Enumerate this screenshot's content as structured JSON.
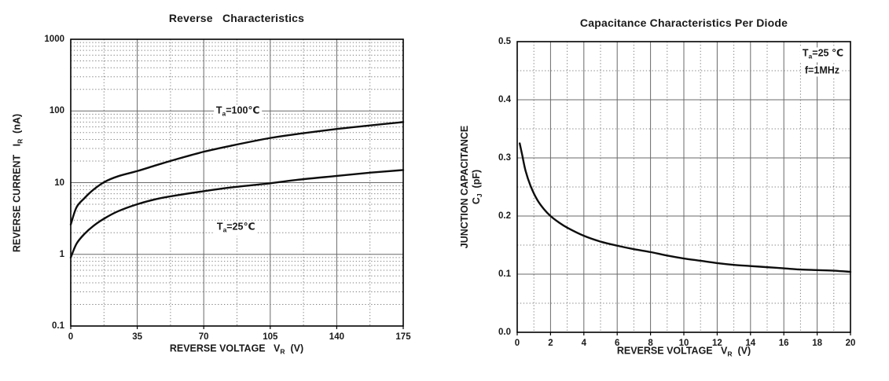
{
  "page": {
    "background": "#ffffff"
  },
  "colors": {
    "text": "#1a1a1a",
    "curve": "#0d0d0d",
    "border": "#000000",
    "grid_major": "#696969",
    "grid_minor": "#7f7f7f"
  },
  "chart_data": [
    {
      "type": "line",
      "title": "Reverse   Characteristics",
      "x_axis": {
        "scale": "linear",
        "min": 0,
        "max": 175,
        "major_step": 35,
        "minor_step": 17.5,
        "tick_values": [
          0,
          35,
          70,
          105,
          140,
          175
        ],
        "tick_labels": [
          "0",
          "35",
          "70",
          "105",
          "140",
          "175"
        ],
        "label_lines": [
          [
            {
              "t": "REVERSE VOLTAGE   V"
            },
            {
              "s": "R"
            },
            {
              "t": "  (V)"
            }
          ]
        ]
      },
      "y_axis": {
        "scale": "log",
        "min": 0.1,
        "max": 1000,
        "tick_values": [
          1000,
          100,
          10,
          1,
          0.1
        ],
        "tick_labels": [
          "1000",
          "100",
          "10",
          "1",
          "0.1"
        ],
        "label_lines": [
          [
            {
              "t": "REVERSE CURRENT   I"
            },
            {
              "s": "R"
            },
            {
              "t": "  (nA)"
            }
          ]
        ]
      },
      "series": [
        {
          "name": "Ta=100C",
          "x": [
            0,
            3,
            7,
            12,
            18,
            25,
            35,
            45,
            55,
            70,
            85,
            105,
            120,
            140,
            158,
            175
          ],
          "values": [
            2.6,
            4.5,
            6.0,
            8.0,
            10.3,
            12.3,
            14.5,
            17.5,
            21,
            27,
            33,
            42,
            48,
            56,
            63,
            70
          ]
        },
        {
          "name": "Ta=25C",
          "x": [
            0,
            3,
            7,
            12,
            18,
            25,
            35,
            45,
            55,
            70,
            85,
            105,
            120,
            140,
            158,
            175
          ],
          "values": [
            0.9,
            1.4,
            1.9,
            2.5,
            3.2,
            4.0,
            5.0,
            5.9,
            6.6,
            7.6,
            8.6,
            9.8,
            11.0,
            12.4,
            13.8,
            15.0
          ]
        }
      ],
      "annotations": [
        {
          "parts": [
            {
              "t": "T"
            },
            {
              "s": "a"
            },
            {
              "t": "=100℃"
            }
          ],
          "x": 88,
          "y": 95
        },
        {
          "parts": [
            {
              "t": "T"
            },
            {
              "s": "a"
            },
            {
              "t": "=25℃"
            }
          ],
          "x": 87,
          "y": 2.3
        }
      ],
      "legend": "none",
      "grid": "major-solid, minor-dotted"
    },
    {
      "type": "line",
      "title": "Capacitance Characteristics Per Diode",
      "x_axis": {
        "scale": "linear",
        "min": 0,
        "max": 20,
        "major_step": 2,
        "minor_step": 1,
        "tick_values": [
          0,
          2,
          4,
          6,
          8,
          10,
          12,
          14,
          16,
          18,
          20
        ],
        "tick_labels": [
          "0",
          "2",
          "4",
          "6",
          "8",
          "10",
          "12",
          "14",
          "16",
          "18",
          "20"
        ],
        "label_lines": [
          [
            {
              "t": "REVERSE VOLTAGE   V"
            },
            {
              "s": "R"
            },
            {
              "t": "  (V)"
            }
          ]
        ]
      },
      "y_axis": {
        "scale": "linear",
        "min": 0,
        "max": 0.5,
        "major_step": 0.1,
        "minor_step": 0.05,
        "tick_values": [
          0.5,
          0.4,
          0.3,
          0.2,
          0.1,
          0
        ],
        "tick_labels": [
          "0.5",
          "0.4",
          "0.3",
          "0.2",
          "0.1",
          "0.0"
        ],
        "label_lines": [
          [
            {
              "t": "JUNCTION CAPACITANCE"
            }
          ],
          [
            {
              "t": "C"
            },
            {
              "s": "J"
            },
            {
              "t": "  (pF)"
            }
          ]
        ]
      },
      "series": [
        {
          "name": "Cj",
          "x": [
            0.15,
            0.3,
            0.5,
            0.8,
            1.2,
            1.6,
            2,
            2.5,
            3,
            4,
            5,
            6,
            7,
            8,
            9,
            10,
            11,
            12,
            13,
            14,
            15,
            16,
            17,
            18,
            19,
            20
          ],
          "values": [
            0.325,
            0.305,
            0.278,
            0.252,
            0.228,
            0.212,
            0.2,
            0.189,
            0.18,
            0.166,
            0.156,
            0.149,
            0.143,
            0.138,
            0.132,
            0.127,
            0.123,
            0.119,
            0.116,
            0.114,
            0.112,
            0.11,
            0.108,
            0.107,
            0.106,
            0.104
          ]
        }
      ],
      "annotations": [
        {
          "parts": [
            {
              "t": "T"
            },
            {
              "s": "a"
            },
            {
              "t": "=25 ℃"
            }
          ],
          "x": 18.35,
          "y": 0.477
        },
        {
          "parts": [
            {
              "t": "f=1MHz"
            }
          ],
          "x": 18.3,
          "y": 0.45
        }
      ],
      "legend": "none",
      "grid": "major-solid, minor-dotted"
    }
  ]
}
